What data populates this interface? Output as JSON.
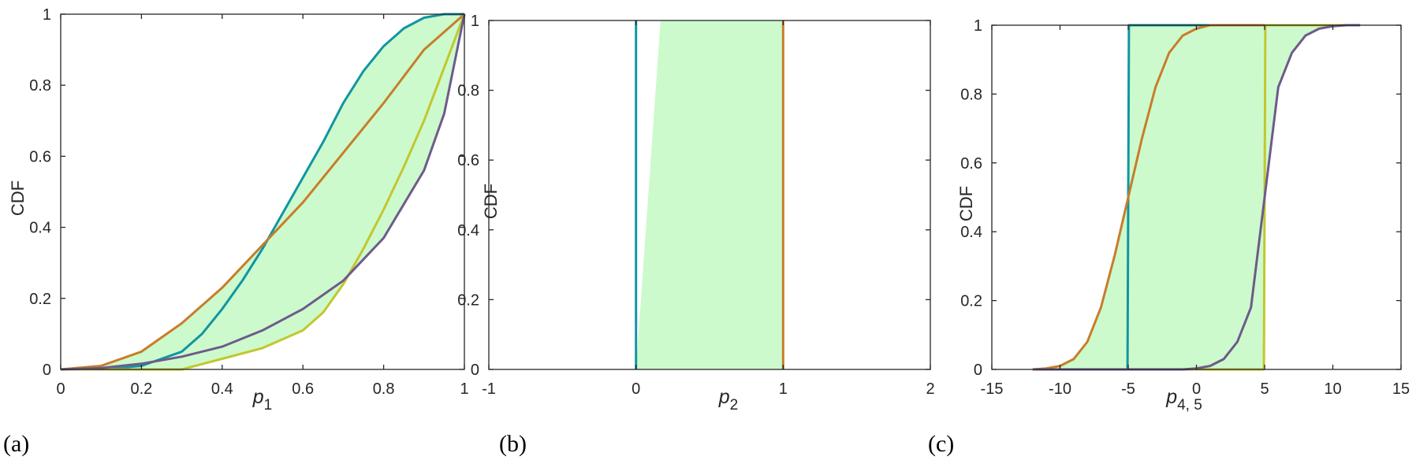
{
  "colors": {
    "teal": "#1295a3",
    "orange": "#c87d2a",
    "yellow": "#c3c62e",
    "purple": "#6e5a8b",
    "fill": "#ccfacc",
    "axis": "#262626"
  },
  "chart_data": [
    {
      "type": "line",
      "panel_label": "(a)",
      "xlabel_base": "p",
      "xlabel_sub": "1",
      "ylabel": "CDF",
      "xlim": [
        0,
        1
      ],
      "ylim": [
        0,
        1
      ],
      "xticks": [
        0,
        0.2,
        0.4,
        0.6,
        0.8,
        1
      ],
      "xtick_labels": [
        "0",
        "0.2",
        "0.4",
        "0.6",
        "0.8",
        "1"
      ],
      "yticks": [
        0,
        0.2,
        0.4,
        0.6,
        0.8,
        1
      ],
      "ytick_labels": [
        "0",
        "0.2",
        "0.4",
        "0.6",
        "0.8",
        "1"
      ],
      "grid": false,
      "shaded_band": "between min and max envelope of all series",
      "series": [
        {
          "color": "teal",
          "x": [
            0,
            0.1,
            0.2,
            0.25,
            0.3,
            0.35,
            0.4,
            0.45,
            0.5,
            0.55,
            0.6,
            0.65,
            0.7,
            0.75,
            0.8,
            0.85,
            0.9,
            0.95,
            1.0
          ],
          "y": [
            0,
            0,
            0.01,
            0.03,
            0.05,
            0.1,
            0.17,
            0.25,
            0.34,
            0.44,
            0.54,
            0.64,
            0.75,
            0.84,
            0.91,
            0.96,
            0.99,
            1.0,
            1.0
          ]
        },
        {
          "color": "orange",
          "x": [
            0,
            0.1,
            0.2,
            0.3,
            0.4,
            0.5,
            0.6,
            0.7,
            0.8,
            0.9,
            1.0
          ],
          "y": [
            0,
            0.01,
            0.05,
            0.13,
            0.23,
            0.35,
            0.47,
            0.61,
            0.75,
            0.9,
            1.0
          ]
        },
        {
          "color": "yellow",
          "x": [
            0,
            0.2,
            0.3,
            0.4,
            0.5,
            0.6,
            0.65,
            0.7,
            0.75,
            0.8,
            0.85,
            0.9,
            0.95,
            1.0
          ],
          "y": [
            0,
            0,
            0,
            0.03,
            0.06,
            0.11,
            0.16,
            0.24,
            0.34,
            0.45,
            0.57,
            0.7,
            0.85,
            1.0
          ]
        },
        {
          "color": "purple",
          "x": [
            0,
            0.1,
            0.2,
            0.3,
            0.4,
            0.5,
            0.6,
            0.7,
            0.8,
            0.9,
            0.95,
            1.0
          ],
          "y": [
            0,
            0.004,
            0.016,
            0.036,
            0.064,
            0.11,
            0.17,
            0.25,
            0.37,
            0.56,
            0.72,
            1.0
          ]
        }
      ]
    },
    {
      "type": "line",
      "panel_label": "(b)",
      "xlabel_base": "p",
      "xlabel_sub": "2",
      "ylabel": "CDF",
      "xlim": [
        -1,
        2
      ],
      "ylim": [
        0,
        1
      ],
      "xticks": [
        -1,
        0,
        1,
        2
      ],
      "xtick_labels": [
        "-1",
        "0",
        "1",
        "2"
      ],
      "yticks": [
        0,
        0.2,
        0.4,
        0.6,
        0.8,
        1
      ],
      "ytick_labels": [
        "0",
        "0.2",
        "0.4",
        "0.6",
        "0.8",
        "1"
      ],
      "grid": false,
      "shaded_band": "x from 0 to 1, y from 0 to 1",
      "series": [
        {
          "color": "teal",
          "x": [
            0,
            0
          ],
          "y": [
            0,
            1
          ]
        },
        {
          "color": "orange",
          "x": [
            1,
            1
          ],
          "y": [
            0,
            1
          ]
        }
      ]
    },
    {
      "type": "line",
      "panel_label": "(c)",
      "xlabel_base": "p",
      "xlabel_sub": "4, 5",
      "ylabel": "CDF",
      "xlim": [
        -15,
        15
      ],
      "ylim": [
        0,
        1
      ],
      "xticks": [
        -15,
        -10,
        -5,
        0,
        5,
        10,
        15
      ],
      "xtick_labels": [
        "-15",
        "-10",
        "-5",
        "0",
        "5",
        "10",
        "15"
      ],
      "yticks": [
        0,
        0.2,
        0.4,
        0.6,
        0.8,
        1
      ],
      "ytick_labels": [
        "0",
        "0.2",
        "0.4",
        "0.6",
        "0.8",
        "1"
      ],
      "grid": false,
      "shaded_band": "between min and max envelope of all series",
      "series": [
        {
          "color": "teal",
          "x": [
            -12,
            -5.05,
            -5.0,
            -4.95,
            5.0,
            12
          ],
          "y": [
            0,
            0,
            0.5,
            1.0,
            1.0,
            1.0
          ]
        },
        {
          "color": "orange",
          "x": [
            -12,
            -11,
            -10,
            -9,
            -8,
            -7,
            -6,
            -5,
            -4,
            -3,
            -2,
            -1,
            0,
            1,
            12
          ],
          "y": [
            0,
            0.003,
            0.01,
            0.03,
            0.08,
            0.18,
            0.33,
            0.5,
            0.67,
            0.82,
            0.92,
            0.97,
            0.99,
            1.0,
            1.0
          ]
        },
        {
          "color": "yellow",
          "x": [
            -12,
            4.95,
            5.0,
            5.05,
            12
          ],
          "y": [
            0,
            0,
            0.5,
            1.0,
            1.0
          ]
        },
        {
          "color": "purple",
          "x": [
            -12,
            -1,
            0,
            1,
            2,
            3,
            4,
            5,
            6,
            7,
            8,
            9,
            10,
            11,
            12
          ],
          "y": [
            0,
            0,
            0.003,
            0.01,
            0.03,
            0.08,
            0.18,
            0.5,
            0.82,
            0.92,
            0.97,
            0.99,
            0.997,
            1.0,
            1.0
          ]
        }
      ]
    }
  ]
}
